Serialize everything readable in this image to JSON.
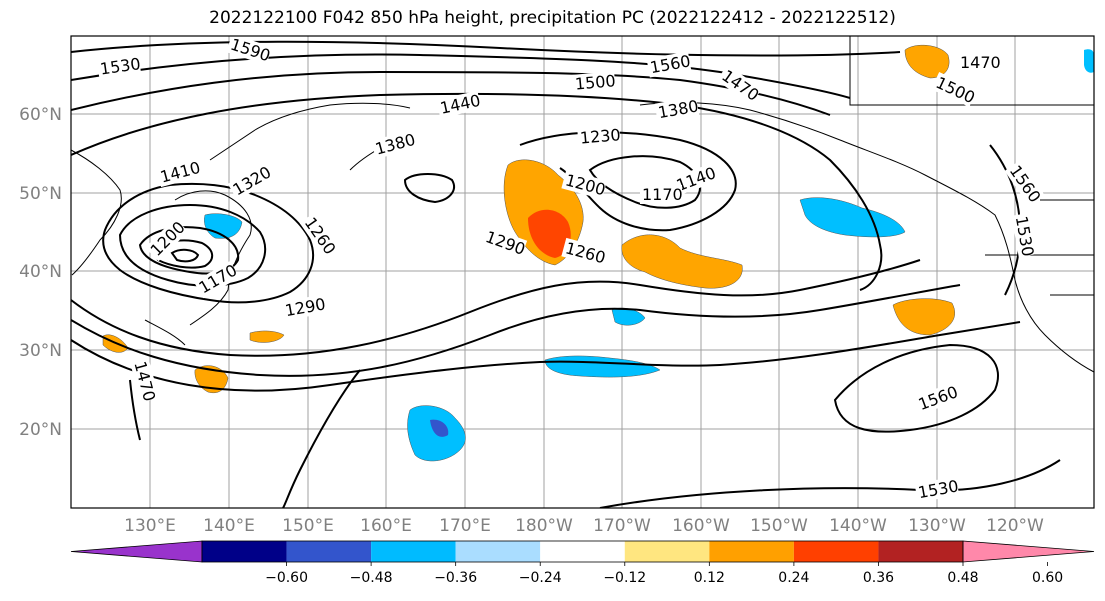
{
  "title": "2022122100 F042 850 hPa height, precipitation PC (2022122412 - 2022122512)",
  "longitude_labels": [
    "130°E",
    "140°E",
    "150°E",
    "160°E",
    "170°E",
    "180°W",
    "170°W",
    "160°W",
    "150°W",
    "140°W",
    "130°W",
    "120°W"
  ],
  "latitude_labels": [
    "60°N",
    "50°N",
    "40°N",
    "30°N",
    "20°N"
  ],
  "contour_labels": [
    "1530",
    "1590",
    "1560",
    "1500",
    "1470",
    "1500",
    "1440",
    "1380",
    "1470",
    "1380",
    "1410",
    "1320",
    "1230",
    "1200",
    "1140",
    "1170",
    "1560",
    "1200",
    "1290",
    "1260",
    "1530",
    "1260",
    "1170",
    "1290",
    "1470",
    "1560",
    "1530"
  ],
  "colorbar": {
    "colors": [
      "#9933CC",
      "#000088",
      "#3355CC",
      "#00BBFF",
      "#AADDFF",
      "#FFFFFF",
      "#FFE680",
      "#FFA000",
      "#FF4000",
      "#B22222",
      "#FF88AA"
    ],
    "labels": [
      "−0.60",
      "−0.48",
      "−0.36",
      "−0.24",
      "−0.12",
      "0.12",
      "0.24",
      "0.36",
      "0.48",
      "0.60"
    ]
  },
  "legend_colors": {
    "orange": "#FFA500",
    "orange_red": "#FF4500",
    "yellow": "#FFE680",
    "deep_sky_blue": "#00BFFF",
    "light_blue": "#AADDFF",
    "blue": "#3355CC"
  }
}
